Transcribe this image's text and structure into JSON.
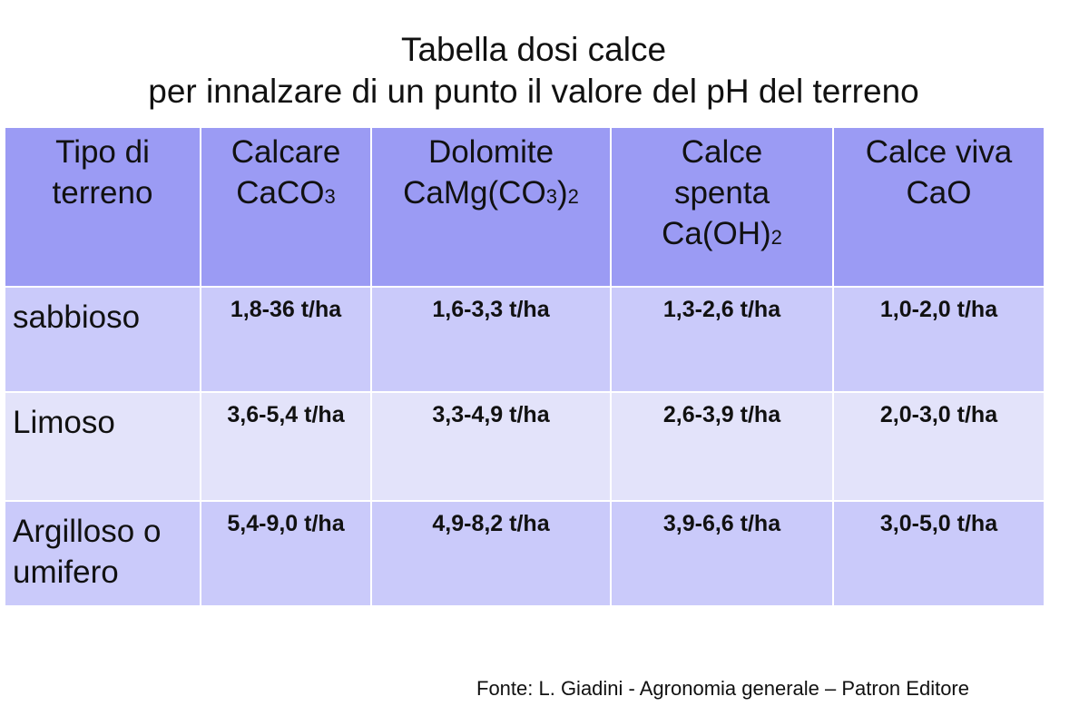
{
  "title": [
    "Tabella dosi calce",
    "per innalzare di un punto il valore del pH del terreno"
  ],
  "table": {
    "header": [
      [
        [
          "Tipo di"
        ],
        [
          "terreno"
        ]
      ],
      [
        [
          "Calcare"
        ],
        [
          "CaCO",
          {
            "sub": "3"
          }
        ]
      ],
      [
        [
          "Dolomite"
        ],
        [
          "CaMg(CO",
          {
            "sub": "3"
          },
          ")",
          {
            "sub": "2"
          }
        ]
      ],
      [
        [
          "Calce"
        ],
        [
          "spenta"
        ],
        [
          "Ca(OH)",
          {
            "sub": "2"
          }
        ]
      ],
      [
        [
          "Calce viva"
        ],
        [
          "CaO"
        ]
      ]
    ],
    "rows": [
      [
        [
          "sabbioso"
        ],
        "1,8-36 t/ha",
        "1,6-3,3 t/ha",
        "1,3-2,6 t/ha",
        "1,0-2,0 t/ha"
      ],
      [
        [
          "Limoso"
        ],
        "3,6-5,4 t/ha",
        "3,3-4,9 t/ha",
        "2,6-3,9 t/ha",
        "2,0-3,0 t/ha"
      ],
      [
        [
          "Argilloso o",
          "umifero"
        ],
        "5,4-9,0 t/ha",
        "4,9-8,2 t/ha",
        "3,9-6,6 t/ha",
        "3,0-5,0 t/ha"
      ]
    ]
  },
  "source": "Fonte: L. Giadini - Agronomia generale – Patron Editore"
}
